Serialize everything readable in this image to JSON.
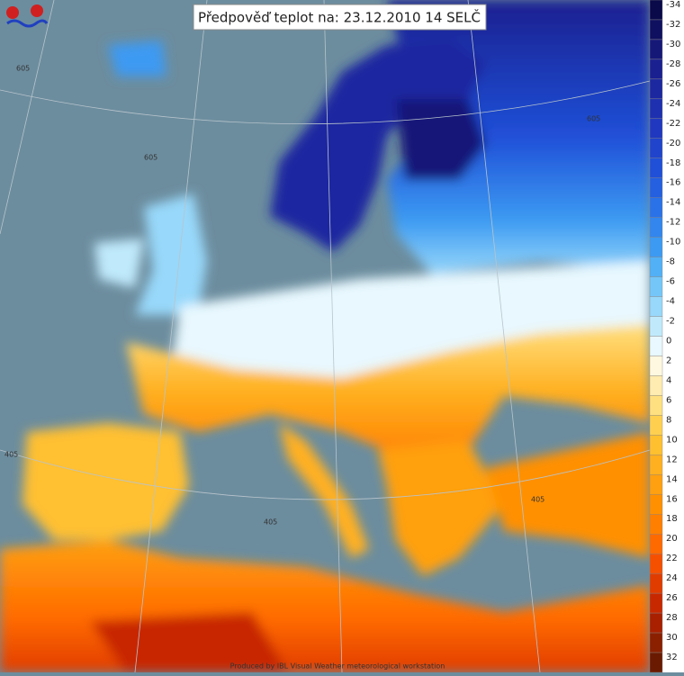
{
  "header": {
    "title": "Předpověď teplot na: 23.12.2010 14 SELČ"
  },
  "credit": "Produced by IBL Visual Weather meteorological workstation",
  "graticule_labels": [
    "605",
    "605",
    "605",
    "405",
    "405",
    "405"
  ],
  "legend": {
    "labels": [
      -34,
      -32,
      -30,
      -28,
      -26,
      -24,
      -22,
      -20,
      -18,
      -16,
      -14,
      -12,
      -10,
      -8,
      -6,
      -4,
      -2,
      0,
      2,
      4,
      6,
      8,
      10,
      12,
      14,
      16,
      18,
      20,
      22,
      24,
      26,
      28,
      30,
      32
    ],
    "colors": [
      "#0a0a4a",
      "#101060",
      "#161878",
      "#1a2090",
      "#1c28a0",
      "#1e30b0",
      "#2038c0",
      "#2044cc",
      "#2050d8",
      "#2460e0",
      "#2a72e8",
      "#3286ee",
      "#3c9af2",
      "#52b0f6",
      "#74c6f8",
      "#98d8fa",
      "#c0eafc",
      "#e8f8fe",
      "#fff8e0",
      "#ffecb0",
      "#ffe080",
      "#ffd050",
      "#ffc030",
      "#ffb020",
      "#ffa010",
      "#ff9000",
      "#ff8000",
      "#ff6a00",
      "#f55000",
      "#e03c00",
      "#c82800",
      "#a82000",
      "#8a2000",
      "#6a1a00"
    ]
  }
}
